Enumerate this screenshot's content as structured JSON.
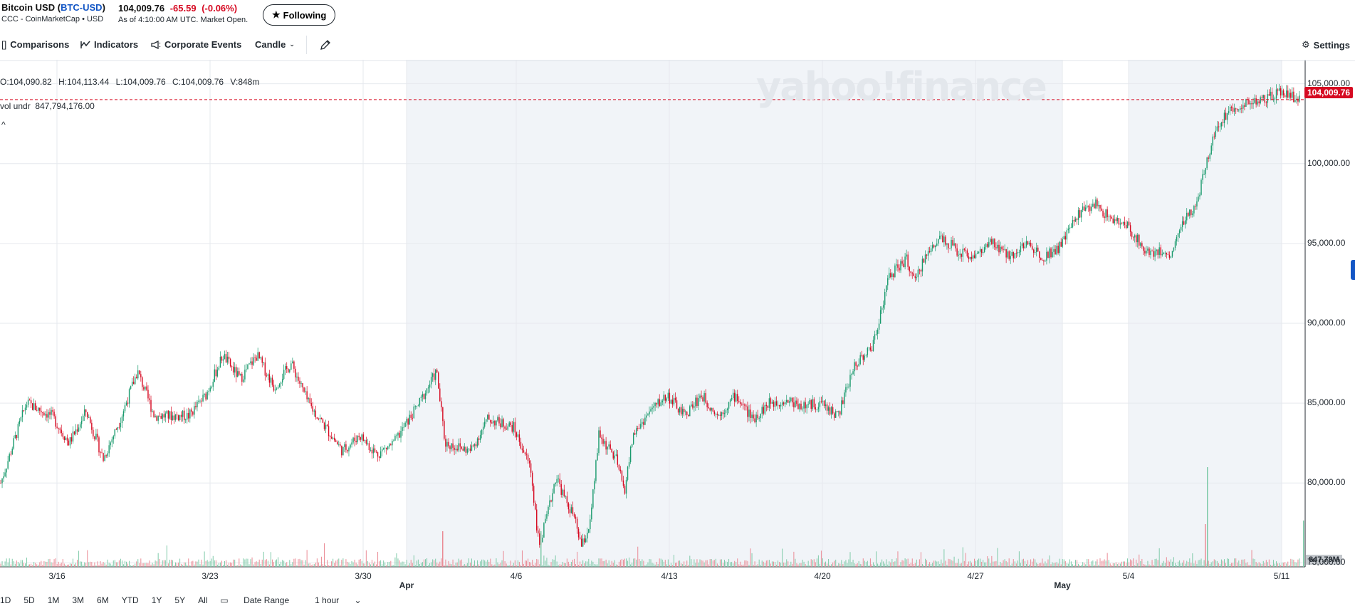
{
  "header": {
    "name": "Bitcoin USD",
    "symbol": "BTC-USD",
    "source": "CCC - CoinMarketCap • USD",
    "price": "104,009.76",
    "change": "-65.59",
    "change_pct": "(-0.06%)",
    "as_of": "As of 4:10:00 AM UTC. Market Open.",
    "follow_label": "Following"
  },
  "toolbar": {
    "comparisons": "Comparisons",
    "indicators": "Indicators",
    "events": "Corporate Events",
    "candle": "Candle",
    "settings": "Settings"
  },
  "legend": {
    "open": "O:104,090.82",
    "high": "H:104,113.44",
    "low": "L:104,009.76",
    "close": "C:104,009.76",
    "vol": "V:848m",
    "vol_undr_label": "vol undr",
    "vol_undr_value": "847,794,176.00",
    "collapse": "^"
  },
  "watermark": "yahoo!finance",
  "price_tag": "104,009.76",
  "vol_tag": "847.79M",
  "ranges": [
    "1D",
    "5D",
    "1M",
    "3M",
    "6M",
    "YTD",
    "1Y",
    "5Y",
    "All"
  ],
  "date_range_label": "Date Range",
  "interval_label": "1 hour",
  "colors": {
    "up": "#1a9a6d",
    "down": "#d60a22",
    "accent": "#1356c5"
  },
  "chart_data": {
    "type": "candlestick",
    "interval": "1 hour",
    "y_ticks": [
      "105,000.00",
      "100,000.00",
      "95,000.00",
      "90,000.00",
      "85,000.00",
      "80,000.00",
      "75,000.00"
    ],
    "y_range": [
      73500,
      106500
    ],
    "x_labels": [
      {
        "label": "3/16",
        "bold": false
      },
      {
        "label": "3/23",
        "bold": false
      },
      {
        "label": "3/30",
        "bold": false
      },
      {
        "label": "Apr",
        "bold": true
      },
      {
        "label": "4/6",
        "bold": false
      },
      {
        "label": "4/13",
        "bold": false
      },
      {
        "label": "4/20",
        "bold": false
      },
      {
        "label": "4/27",
        "bold": false
      },
      {
        "label": "May",
        "bold": true
      },
      {
        "label": "5/4",
        "bold": false
      },
      {
        "label": "5/11",
        "bold": false
      }
    ],
    "last_price": 104009.76,
    "path": [
      [
        0,
        80000
      ],
      [
        1.5,
        85000
      ],
      [
        3,
        84200
      ],
      [
        4,
        82500
      ],
      [
        5,
        84500
      ],
      [
        6,
        81500
      ],
      [
        7,
        84000
      ],
      [
        8,
        87000
      ],
      [
        9,
        84200
      ],
      [
        11,
        84200
      ],
      [
        12,
        85500
      ],
      [
        13,
        88000
      ],
      [
        14,
        86500
      ],
      [
        15,
        88000
      ],
      [
        16,
        86000
      ],
      [
        17,
        87500
      ],
      [
        18,
        85000
      ],
      [
        19,
        83500
      ],
      [
        20,
        82000
      ],
      [
        21,
        83000
      ],
      [
        22,
        81800
      ],
      [
        23,
        82500
      ],
      [
        24.5,
        85000
      ],
      [
        25.5,
        87000
      ],
      [
        26,
        82500
      ],
      [
        27.5,
        82000
      ],
      [
        28.5,
        84000
      ],
      [
        30,
        83500
      ],
      [
        31,
        81000
      ],
      [
        31.5,
        76000
      ],
      [
        32,
        78000
      ],
      [
        32.5,
        80500
      ],
      [
        33,
        79000
      ],
      [
        33.5,
        78000
      ],
      [
        34,
        76000
      ],
      [
        34.5,
        77500
      ],
      [
        35,
        83000
      ],
      [
        36,
        81500
      ],
      [
        36.5,
        79500
      ],
      [
        37,
        83000
      ],
      [
        38,
        84500
      ],
      [
        39,
        85500
      ],
      [
        40,
        84200
      ],
      [
        41,
        85500
      ],
      [
        42,
        84200
      ],
      [
        43,
        85500
      ],
      [
        44,
        84000
      ],
      [
        45,
        85000
      ],
      [
        46,
        85200
      ],
      [
        47,
        84800
      ],
      [
        48,
        85000
      ],
      [
        49,
        84200
      ],
      [
        50,
        87500
      ],
      [
        51,
        88500
      ],
      [
        52,
        93000
      ],
      [
        53,
        94000
      ],
      [
        53.5,
        92500
      ],
      [
        54,
        94000
      ],
      [
        55,
        95500
      ],
      [
        56,
        94500
      ],
      [
        57,
        94200
      ],
      [
        58,
        95000
      ],
      [
        59,
        94200
      ],
      [
        60,
        95000
      ],
      [
        61,
        94200
      ],
      [
        62,
        94800
      ],
      [
        63,
        96800
      ],
      [
        64,
        97500
      ],
      [
        65,
        96500
      ],
      [
        66,
        96000
      ],
      [
        67,
        94500
      ],
      [
        68,
        94500
      ],
      [
        68.5,
        94200
      ],
      [
        69,
        96000
      ],
      [
        70,
        97500
      ],
      [
        71,
        102000
      ],
      [
        72,
        103500
      ],
      [
        73,
        103800
      ],
      [
        74,
        104000
      ],
      [
        75,
        104500
      ],
      [
        76,
        104009.76
      ]
    ],
    "volume_spike": "848m"
  }
}
